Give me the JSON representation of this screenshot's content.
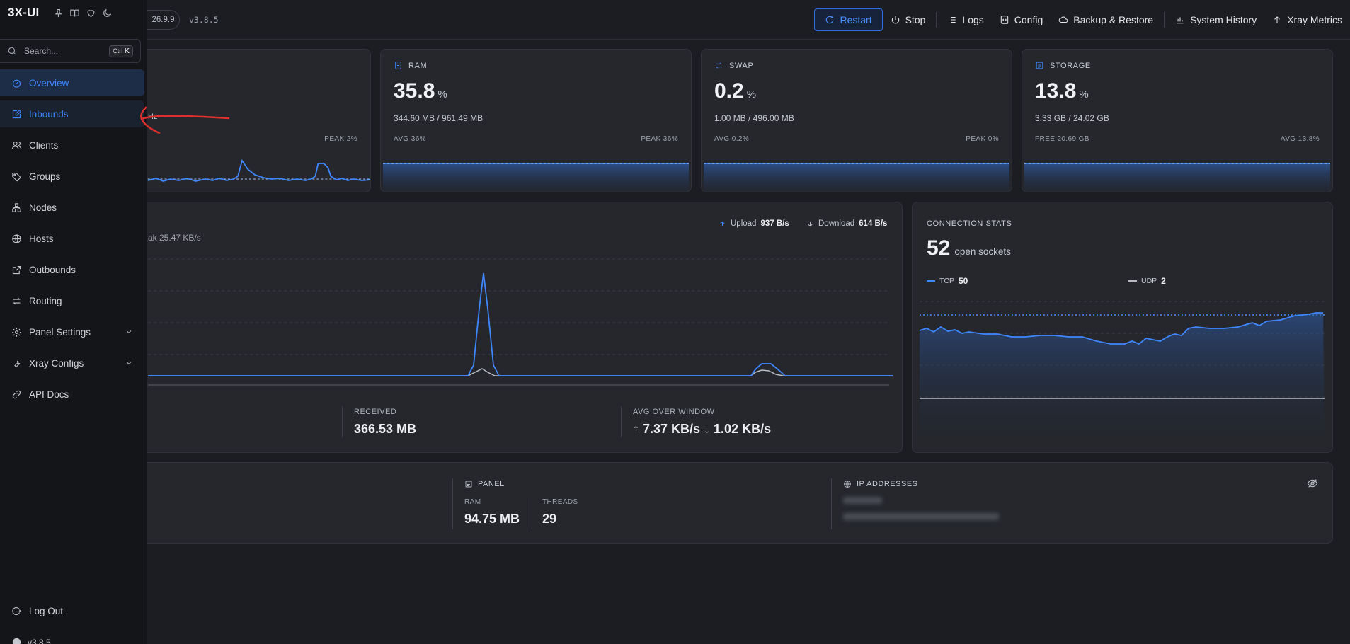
{
  "app": {
    "brand": "3X-UI",
    "brand_icons": [
      "pin-icon",
      "book-icon",
      "heart-icon",
      "moon-icon"
    ]
  },
  "search": {
    "placeholder": "Search...",
    "shortcut_mod": "Ctrl",
    "shortcut_key": "K"
  },
  "sidebar": {
    "items": [
      {
        "label": "Overview",
        "icon": "dashboard-icon",
        "active": true
      },
      {
        "label": "Inbounds",
        "icon": "edit-icon"
      },
      {
        "label": "Clients",
        "icon": "users-icon"
      },
      {
        "label": "Groups",
        "icon": "tag-icon"
      },
      {
        "label": "Nodes",
        "icon": "nodes-icon"
      },
      {
        "label": "Hosts",
        "icon": "globe-icon"
      },
      {
        "label": "Outbounds",
        "icon": "external-icon"
      },
      {
        "label": "Routing",
        "icon": "swap-icon"
      },
      {
        "label": "Panel Settings",
        "icon": "gear-icon",
        "expandable": true
      },
      {
        "label": "Xray Configs",
        "icon": "wrench-icon",
        "expandable": true
      },
      {
        "label": "API Docs",
        "icon": "link-icon"
      }
    ],
    "logout": "Log Out",
    "footer_version": "v3.8.5"
  },
  "topbar": {
    "xray_version": "26.9.9",
    "panel_version": "v3.8.5",
    "actions": {
      "restart": "Restart",
      "stop": "Stop",
      "logs": "Logs",
      "config": "Config",
      "backup": "Backup & Restore",
      "history": "System History",
      "metrics": "Xray Metrics"
    }
  },
  "cpu": {
    "unit_fragment": "Hz",
    "peak": "PEAK 2%"
  },
  "ram": {
    "title": "RAM",
    "value": "35.8",
    "unit": "%",
    "detail": "344.60 MB / 961.49 MB",
    "left": "AVG 36%",
    "right": "PEAK 36%"
  },
  "swap": {
    "title": "SWAP",
    "value": "0.2",
    "unit": "%",
    "detail": "1.00 MB / 496.00 MB",
    "left": "AVG 0.2%",
    "right": "PEAK 0%"
  },
  "storage": {
    "title": "STORAGE",
    "value": "13.8",
    "unit": "%",
    "detail": "3.33 GB / 24.02 GB",
    "left": "FREE 20.69 GB",
    "right": "AVG 13.8%"
  },
  "traffic": {
    "peak_fragment": "ak 25.47 KB/s",
    "upload_label": "Upload",
    "upload_value": "937 B/s",
    "download_label": "Download",
    "download_value": "614 B/s",
    "received_label": "RECEIVED",
    "received_value": "366.53 MB",
    "avg_label": "AVG OVER WINDOW",
    "avg_value": "↑ 7.37 KB/s ↓ 1.02 KB/s"
  },
  "connections": {
    "title": "CONNECTION STATS",
    "count": "52",
    "count_label": "open sockets",
    "tcp_label": "TCP",
    "tcp_value": "50",
    "udp_label": "UDP",
    "udp_value": "2"
  },
  "panel": {
    "title": "PANEL",
    "ram_label": "RAM",
    "ram_value": "94.75 MB",
    "threads_label": "THREADS",
    "threads_value": "29"
  },
  "ip": {
    "title": "IP ADDRESSES",
    "hidden_icon": "eye-off-icon"
  },
  "colors": {
    "accent": "#3f87ff",
    "bg": "#1c1d22",
    "card": "#25272d",
    "annotation": "#e0302c"
  }
}
